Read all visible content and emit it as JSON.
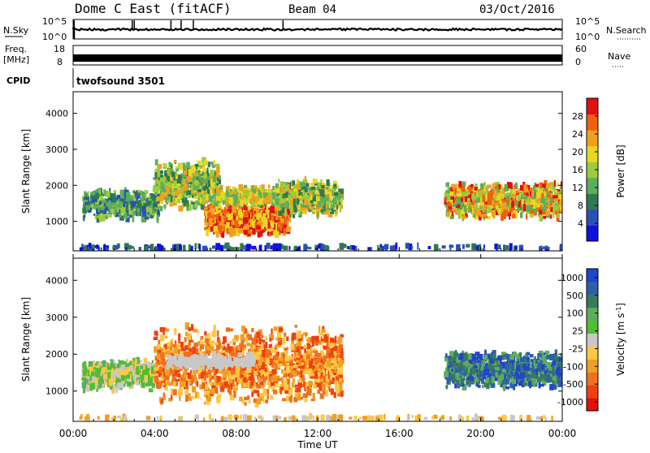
{
  "header": {
    "station": "Dome C East (fitACF)",
    "beam": "Beam 04",
    "date": "03/Oct/2016"
  },
  "strips": {
    "nsky_label": "N.Sky",
    "nsky_ticks": [
      "10^5",
      "10^0"
    ],
    "nsearch_label": "N.Search",
    "nsearch_ticks": [
      "10^5",
      "10^0"
    ],
    "freq_label_1": "Freq.",
    "freq_label_2": "[MHz]",
    "freq_ticks": [
      "18",
      "8"
    ],
    "nave_label": "Nave",
    "nave_ticks": [
      "60",
      "0"
    ],
    "cpid_label": "CPID",
    "cpid_value": "twofsound 3501"
  },
  "colors": {
    "power_scale": [
      "#1010e0",
      "#2a50b8",
      "#2e7a50",
      "#5cae5c",
      "#9ccc3c",
      "#e8d820",
      "#f0a020",
      "#f06010",
      "#e01010"
    ],
    "velocity_scale": [
      "#e01010",
      "#f04010",
      "#f07020",
      "#f0a020",
      "#ffc840",
      "#c8c8c8",
      "#4fbf30",
      "#5cae5c",
      "#3a7a5a",
      "#2e60a8",
      "#2244cc"
    ]
  },
  "chart_data": [
    {
      "type": "heatmap",
      "title": "",
      "ylabel": "Slant Range [km]",
      "xlabel": "",
      "xlim": [
        "00:00",
        "24:00"
      ],
      "ylim": [
        180,
        4600
      ],
      "yticks": [
        1000,
        2000,
        3000,
        4000
      ],
      "colorbar": {
        "label": "Power [dB]",
        "range": [
          0,
          32
        ],
        "ticks": [
          4,
          8,
          12,
          16,
          20,
          24,
          28
        ]
      },
      "scatter_regions": [
        {
          "t": [
            0.5,
            4.2
          ],
          "r": [
            1000,
            1900
          ],
          "level": "low-mid"
        },
        {
          "t": [
            4.0,
            7.2
          ],
          "r": [
            1300,
            2700
          ],
          "level": "mid"
        },
        {
          "t": [
            6.5,
            10.5
          ],
          "r": [
            600,
            1500
          ],
          "level": "high (24-30 dB)"
        },
        {
          "t": [
            10.0,
            13.2
          ],
          "r": [
            1100,
            2200
          ],
          "level": "mid"
        },
        {
          "t": [
            18.3,
            24.0
          ],
          "r": [
            1100,
            2100
          ],
          "level": "mid-high"
        }
      ]
    },
    {
      "type": "heatmap",
      "title": "",
      "ylabel": "Slant Range [km]",
      "xlabel": "Time UT",
      "xticks": [
        "00:00",
        "04:00",
        "08:00",
        "12:00",
        "16:00",
        "20:00",
        "00:00"
      ],
      "ylim": [
        180,
        4600
      ],
      "yticks": [
        1000,
        2000,
        3000,
        4000
      ],
      "colorbar": {
        "label": "Velocity [m s^-1]",
        "ticks": [
          "1000",
          "500",
          "100",
          "25",
          "-25",
          "-100",
          "-500",
          "-1000"
        ]
      },
      "scatter_regions": [
        {
          "t": [
            0.5,
            4.0
          ],
          "r": [
            1000,
            1900
          ],
          "velocity": "-100 to 100"
        },
        {
          "t": [
            4.0,
            13.2
          ],
          "r": [
            600,
            2800
          ],
          "velocity": "-500 to -100"
        },
        {
          "t": [
            18.3,
            24.0
          ],
          "r": [
            1100,
            2100
          ],
          "velocity": "500 to 1000"
        }
      ]
    }
  ],
  "x_axis": {
    "ticks": [
      "00:00",
      "04:00",
      "08:00",
      "12:00",
      "16:00",
      "20:00",
      "00:00"
    ],
    "label": "Time UT"
  }
}
